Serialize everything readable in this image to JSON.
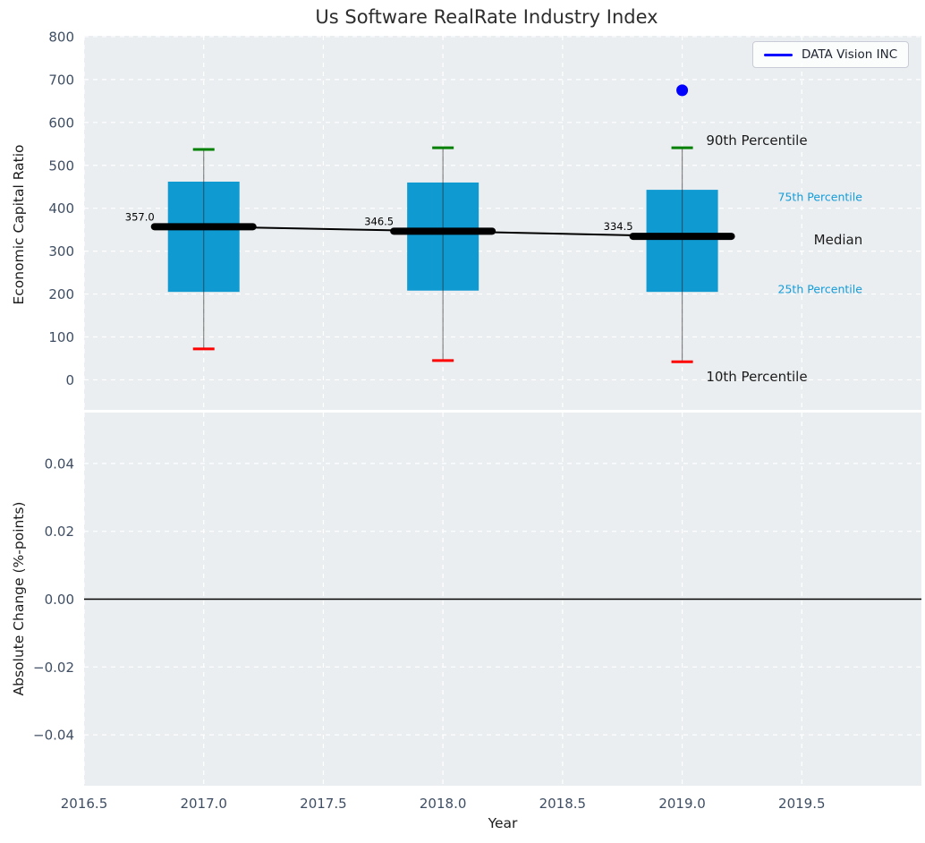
{
  "figure": {
    "title": "Us Software RealRate Industry Index",
    "legend": {
      "label": "DATA Vision INC"
    }
  },
  "colors": {
    "plot_bg": "#eaeef0",
    "grid": "#ffffff",
    "box_fill": "#0f9ad2",
    "cap_90": "#008000",
    "cap_10": "#ff0000",
    "median": "#000000",
    "whisker": "rgba(40,40,40,0.55)",
    "company_point": "#0000ff",
    "tick_label": "#3f4e63",
    "median_label": "#000000",
    "legend_line": "#0000ff",
    "zero_line": "#000000"
  },
  "chart_data": [
    {
      "type": "box-percentile",
      "title": "Us Software RealRate Industry Index",
      "ylabel": "Economic Capital Ratio",
      "xlabel": "",
      "xlim": [
        2016.5,
        2020.0
      ],
      "ylim": [
        -70,
        802
      ],
      "xticks": [
        2016.5,
        2017,
        2017.5,
        2018,
        2018.5,
        2019,
        2019.5
      ],
      "yticks": [
        0,
        100,
        200,
        300,
        400,
        500,
        600,
        700,
        800
      ],
      "ytick_labels": [
        "0",
        "100",
        "200",
        "300",
        "400",
        "500",
        "600",
        "700",
        "800"
      ],
      "grid": "white-dashed",
      "legend_position": "upper right",
      "categories": [
        2017,
        2018,
        2019
      ],
      "series": [
        {
          "name": "90th Percentile",
          "values": [
            537,
            541,
            541
          ]
        },
        {
          "name": "75th Percentile",
          "values": [
            462,
            460,
            443
          ]
        },
        {
          "name": "Median",
          "values": [
            357.0,
            346.5,
            334.5
          ]
        },
        {
          "name": "25th Percentile",
          "values": [
            205,
            208,
            205
          ]
        },
        {
          "name": "10th Percentile",
          "values": [
            72,
            45,
            42
          ]
        }
      ],
      "median_labels": [
        "357.0",
        "346.5",
        "334.5"
      ],
      "company_point": {
        "name": "DATA Vision INC",
        "x": 2019,
        "y": 675
      },
      "annotations": [
        {
          "text": "90th Percentile",
          "x": 2019.1,
          "y": 558,
          "style": "dark-large"
        },
        {
          "text": "75th Percentile",
          "x": 2019.4,
          "y": 427,
          "style": "blue-small"
        },
        {
          "text": "Median",
          "x": 2019.55,
          "y": 326,
          "style": "dark-large"
        },
        {
          "text": "25th Percentile",
          "x": 2019.4,
          "y": 212,
          "style": "blue-small"
        },
        {
          "text": "10th Percentile",
          "x": 2019.1,
          "y": 7,
          "style": "dark-large"
        }
      ]
    },
    {
      "type": "line",
      "title": "",
      "ylabel": "Absolute Change (%-points)",
      "xlabel": "Year",
      "xlim": [
        2016.5,
        2020.0
      ],
      "ylim": [
        -0.055,
        0.055
      ],
      "xticks": [
        2016.5,
        2017,
        2017.5,
        2018,
        2018.5,
        2019,
        2019.5
      ],
      "xtick_labels": [
        "2016.5",
        "2017.0",
        "2017.5",
        "2018.0",
        "2018.5",
        "2019.0",
        "2019.5"
      ],
      "yticks": [
        0.04,
        0.02,
        0,
        -0.02,
        -0.04
      ],
      "ytick_labels": [
        "0.04",
        "0.02",
        "0.00",
        "−0.02",
        "−0.04"
      ],
      "grid": "white-dashed",
      "zero_line": 0,
      "series": []
    }
  ]
}
